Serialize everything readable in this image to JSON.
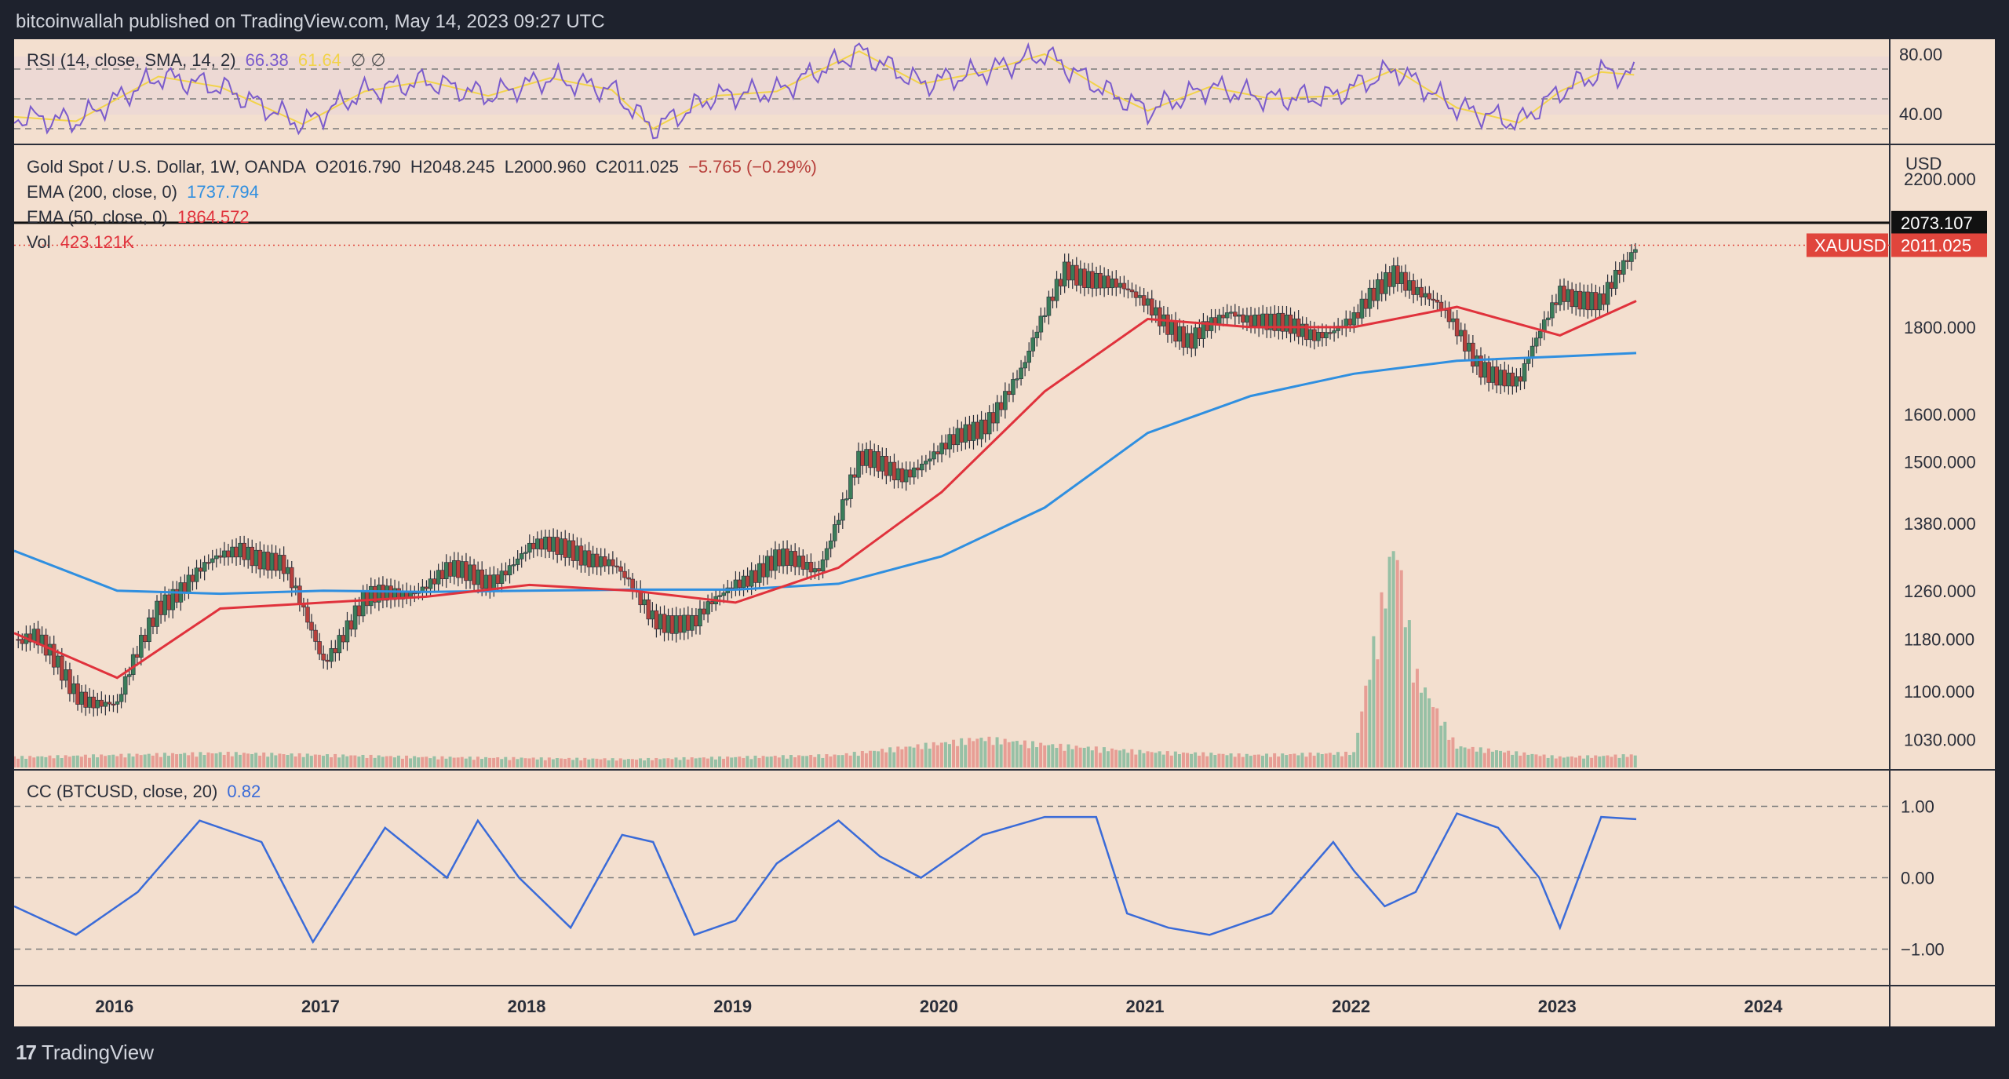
{
  "caption": "bitcoinwallah published on TradingView.com, May 14, 2023 09:27 UTC",
  "brand": {
    "logo_mark": "17",
    "name": "TradingView"
  },
  "colors": {
    "background": "#f3dfcf",
    "frame": "#1e222d",
    "ema200": "#2f8fe0",
    "ema50": "#e0323c",
    "candle_up": "#3a7d5a",
    "candle_down": "#b8403c",
    "rsi": "#7b5ccc",
    "rsi_sma": "#f2d34a",
    "cc": "#3a6bd8",
    "price_tag": "#e0453c"
  },
  "rsi_legend": {
    "label": "RSI (14, close, SMA, 14, 2)",
    "value": "66.38",
    "sma_value": "61.64",
    "extra": "∅ ∅"
  },
  "price_legend": {
    "symbol": "Gold Spot / U.S. Dollar, 1W, OANDA",
    "open": "O2016.790",
    "high": "H2048.245",
    "low": "L2000.960",
    "close": "C2011.025",
    "change": "−5.765 (−0.29%)",
    "ema200_label": "EMA (200, close, 0)",
    "ema200_value": "1737.794",
    "ema50_label": "EMA (50, close, 0)",
    "ema50_value": "1864.572",
    "vol_label": "Vol",
    "vol_value": "423.121K"
  },
  "cc_legend": {
    "label": "CC (BTCUSD, close, 20)",
    "value": "0.82"
  },
  "axis": {
    "currency": "USD",
    "price_ticks": [
      "2200.000",
      "1800.000",
      "1600.000",
      "1500.000",
      "1380.000",
      "1260.000",
      "1180.000",
      "1100.000",
      "1030.000"
    ],
    "rsi_ticks": [
      "80.00",
      "40.00"
    ],
    "cc_ticks": [
      "1.00",
      "0.00",
      "−1.00"
    ],
    "year_ticks": [
      "2016",
      "2017",
      "2018",
      "2019",
      "2020",
      "2021",
      "2022",
      "2023",
      "2024"
    ],
    "resistance_label": "2073.107",
    "symbol_tag": "XAUUSD",
    "last_price_label": "2011.025"
  },
  "chart_data": {
    "type": "line",
    "title": "Gold Spot / U.S. Dollar, 1W, OANDA",
    "ylabel": "USD",
    "price_scale": "log",
    "ylim": [
      990,
      2300
    ],
    "resistance": 2073.107,
    "last_price": 2011.025,
    "series": [
      {
        "name": "XAUUSD",
        "x": [
          "2015.6",
          "2015.8",
          "2016.0",
          "2016.2",
          "2016.4",
          "2016.6",
          "2016.8",
          "2017.0",
          "2017.2",
          "2017.4",
          "2017.6",
          "2017.8",
          "2018.0",
          "2018.2",
          "2018.4",
          "2018.6",
          "2018.8",
          "2019.0",
          "2019.2",
          "2019.4",
          "2019.6",
          "2019.8",
          "2020.0",
          "2020.2",
          "2020.4",
          "2020.6",
          "2020.8",
          "2021.0",
          "2021.2",
          "2021.4",
          "2021.6",
          "2021.8",
          "2022.0",
          "2022.2",
          "2022.4",
          "2022.6",
          "2022.8",
          "2023.0",
          "2023.2",
          "2023.37"
        ],
        "values": [
          1180,
          1100,
          1075,
          1240,
          1290,
          1340,
          1300,
          1150,
          1240,
          1260,
          1290,
          1280,
          1330,
          1340,
          1300,
          1220,
          1200,
          1280,
          1310,
          1300,
          1500,
          1480,
          1520,
          1580,
          1700,
          1960,
          1900,
          1870,
          1750,
          1850,
          1800,
          1790,
          1810,
          1950,
          1850,
          1720,
          1660,
          1900,
          1850,
          2011
        ]
      },
      {
        "name": "EMA (200, close, 0)",
        "x": [
          "2015.5",
          "2016.0",
          "2016.5",
          "2017.0",
          "2017.5",
          "2018.0",
          "2018.5",
          "2019.0",
          "2019.5",
          "2020.0",
          "2020.5",
          "2021.0",
          "2021.5",
          "2022.0",
          "2022.5",
          "2023.0",
          "2023.37"
        ],
        "values": [
          1330,
          1260,
          1255,
          1260,
          1258,
          1260,
          1262,
          1262,
          1272,
          1320,
          1410,
          1560,
          1640,
          1690,
          1720,
          1730,
          1738
        ]
      },
      {
        "name": "EMA (50, close, 0)",
        "x": [
          "2015.5",
          "2016.0",
          "2016.5",
          "2017.0",
          "2017.5",
          "2018.0",
          "2018.5",
          "2019.0",
          "2019.5",
          "2020.0",
          "2020.5",
          "2021.0",
          "2021.5",
          "2022.0",
          "2022.5",
          "2023.0",
          "2023.37"
        ],
        "values": [
          1190,
          1120,
          1230,
          1240,
          1250,
          1270,
          1260,
          1240,
          1300,
          1440,
          1650,
          1820,
          1800,
          1800,
          1850,
          1780,
          1865
        ]
      }
    ],
    "rsi": {
      "ylim": [
        20,
        90
      ],
      "levels": [
        70,
        50,
        30
      ],
      "x": [
        "2015.5",
        "2015.8",
        "2016.2",
        "2016.5",
        "2016.9",
        "2017.2",
        "2017.5",
        "2017.8",
        "2018.1",
        "2018.4",
        "2018.6",
        "2018.9",
        "2019.2",
        "2019.6",
        "2019.9",
        "2020.2",
        "2020.5",
        "2020.8",
        "2021.0",
        "2021.3",
        "2021.6",
        "2021.9",
        "2022.2",
        "2022.5",
        "2022.8",
        "2023.0",
        "2023.2",
        "2023.37"
      ],
      "values": [
        38,
        35,
        65,
        58,
        33,
        55,
        62,
        52,
        64,
        56,
        30,
        52,
        55,
        82,
        60,
        68,
        80,
        55,
        42,
        58,
        50,
        52,
        70,
        44,
        34,
        55,
        68,
        66
      ]
    },
    "volume": {
      "x": [
        "2015.5",
        "2016.5",
        "2017.5",
        "2018.5",
        "2019.5",
        "2020.2",
        "2020.5",
        "2021.0",
        "2021.5",
        "2022.0",
        "2022.1",
        "2022.2",
        "2022.3",
        "2022.5",
        "2022.8",
        "2023.0",
        "2023.37"
      ],
      "values": [
        10,
        14,
        10,
        8,
        12,
        28,
        22,
        15,
        12,
        14,
        120,
        220,
        90,
        20,
        14,
        10,
        12
      ]
    },
    "cc": {
      "ylim": [
        -1.5,
        1.5
      ],
      "levels": [
        1,
        0,
        -1
      ],
      "x": [
        "2015.5",
        "2015.8",
        "2016.1",
        "2016.4",
        "2016.7",
        "2016.95",
        "2017.3",
        "2017.6",
        "2017.75",
        "2017.95",
        "2018.2",
        "2018.45",
        "2018.6",
        "2018.8",
        "2019.0",
        "2019.2",
        "2019.5",
        "2019.7",
        "2019.9",
        "2020.2",
        "2020.5",
        "2020.75",
        "2020.9",
        "2021.1",
        "2021.3",
        "2021.6",
        "2021.9",
        "2022.0",
        "2022.15",
        "2022.3",
        "2022.5",
        "2022.7",
        "2022.9",
        "2023.0",
        "2023.2",
        "2023.37"
      ],
      "values": [
        -0.4,
        -0.8,
        -0.2,
        0.8,
        0.5,
        -0.9,
        0.7,
        0.0,
        0.8,
        0.0,
        -0.7,
        0.6,
        0.5,
        -0.8,
        -0.6,
        0.2,
        0.8,
        0.3,
        0.0,
        0.6,
        0.85,
        0.85,
        -0.5,
        -0.7,
        -0.8,
        -0.5,
        0.5,
        0.1,
        -0.4,
        -0.2,
        0.9,
        0.7,
        0.0,
        -0.7,
        0.85,
        0.82
      ]
    }
  }
}
